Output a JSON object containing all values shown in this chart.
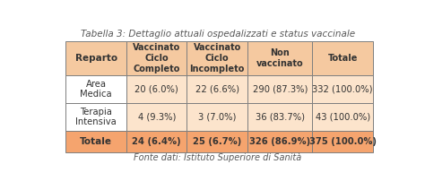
{
  "title": "Tabella 3: Dettaglio attuali ospedalizzati e status vaccinale",
  "footer": "Fonte dati: Istituto Superiore di Sanità",
  "col_headers": [
    "Vaccinato\nCiclo\nCompleto",
    "Vaccinato\nCiclo\nIncompleto",
    "Non\nvaccinato",
    "Totale"
  ],
  "row_headers": [
    "Area\nMedica",
    "Terapia\nIntensiva",
    "Totale"
  ],
  "data": [
    [
      "20 (6.0%)",
      "22 (6.6%)",
      "290 (87.3%)",
      "332 (100.0%)"
    ],
    [
      "4 (9.3%)",
      "3 (7.0%)",
      "36 (83.7%)",
      "43 (100.0%)"
    ],
    [
      "24 (6.4%)",
      "25 (6.7%)",
      "326 (86.9%)",
      "375 (100.0%)"
    ]
  ],
  "header_bg": "#f5c9a0",
  "cell_bg_white": "#ffffff",
  "cell_bg_light": "#fce4cc",
  "totale_bg": "#f5a46e",
  "outer_bg": "#ffffff",
  "border_color": "#7f7f7f",
  "title_color": "#595959",
  "footer_color": "#595959",
  "text_color": "#333333",
  "figsize": [
    4.74,
    2.12
  ],
  "dpi": 100
}
